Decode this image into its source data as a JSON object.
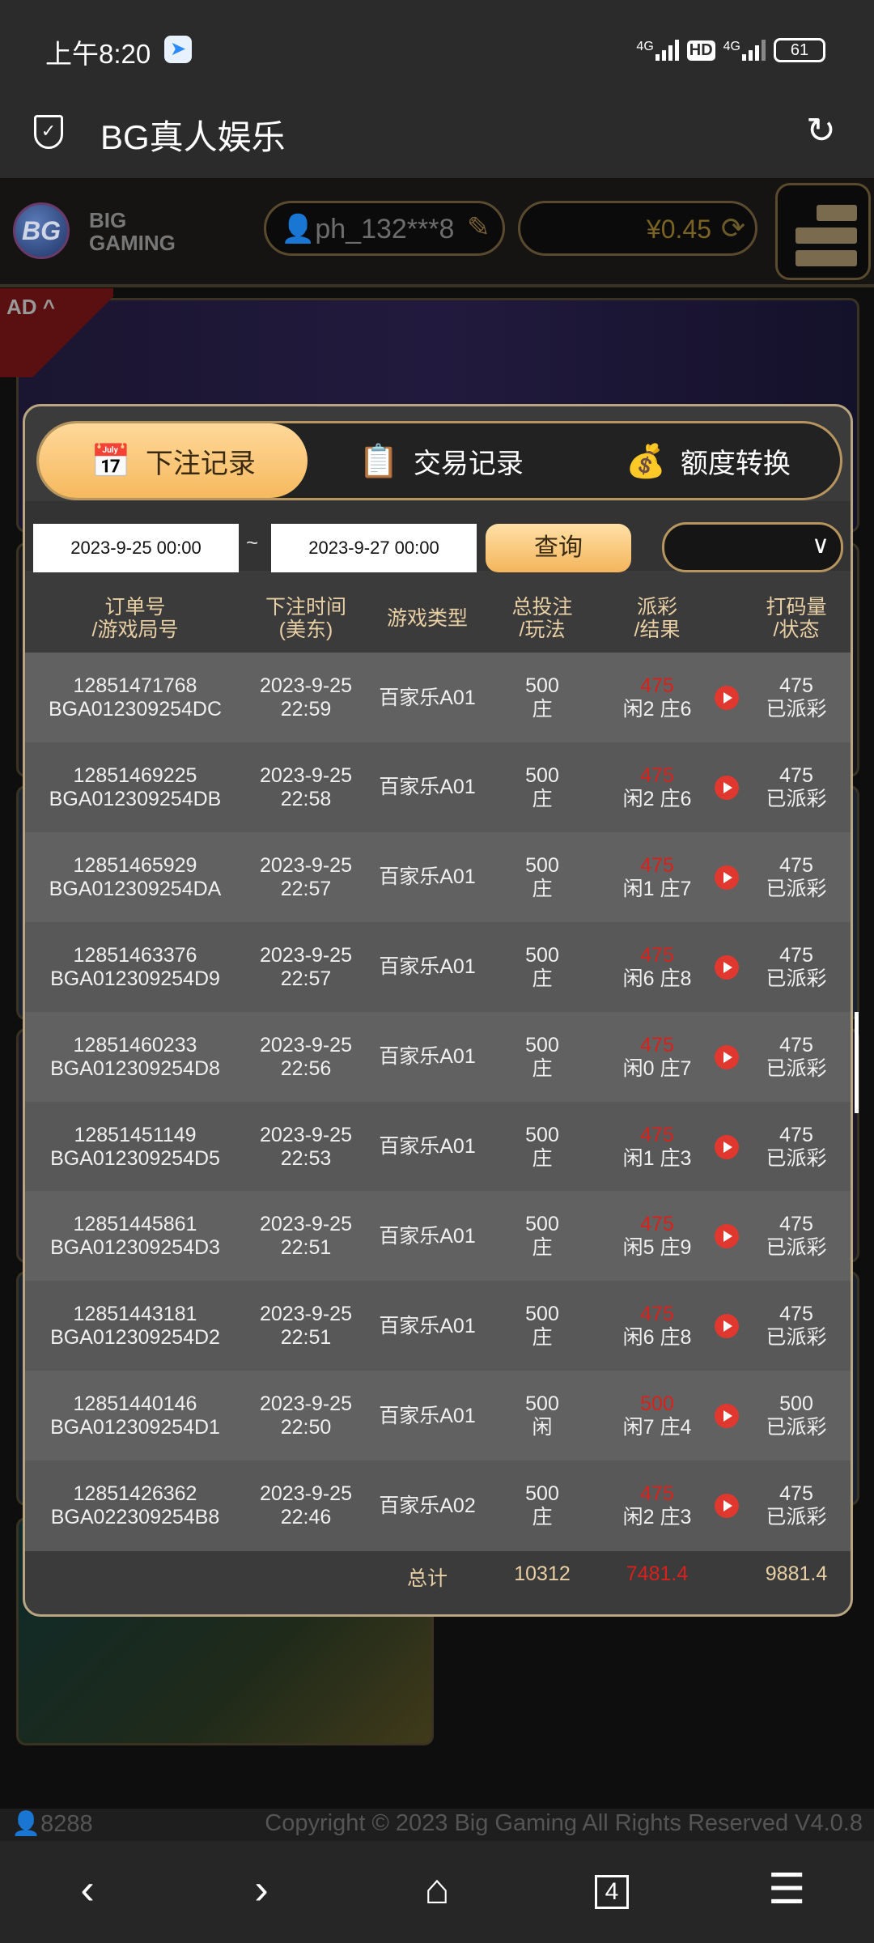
{
  "status_bar": {
    "time": "上午8:20",
    "signal1": "4G",
    "hd": "HD",
    "signal2": "4G",
    "battery": "61"
  },
  "browser": {
    "title": "BG真人娱乐"
  },
  "header": {
    "logo_text": "BG",
    "logo_sub": "BIG GAMING",
    "username": "ph_132***8",
    "balance": "¥0.45"
  },
  "ad": {
    "tag": "AD ^"
  },
  "modal": {
    "tabs": [
      {
        "label": "下注记录",
        "icon": "calendar-icon",
        "active": true
      },
      {
        "label": "交易记录",
        "icon": "clipboard-icon",
        "active": false
      },
      {
        "label": "额度转换",
        "icon": "coins-icon",
        "active": false
      }
    ],
    "filter": {
      "start": "2023-9-25 00:00",
      "sep": "~",
      "end": "2023-9-27 00:00",
      "query": "查询",
      "select": ""
    },
    "columns": [
      "订单号\n/游戏局号",
      "下注时间\n(美东)",
      "游戏类型",
      "总投注\n/玩法",
      "派彩\n/结果",
      "打码量\n/状态"
    ],
    "rows": [
      {
        "order": "12851471768",
        "round": "BGA012309254DC",
        "date": "2023-9-25",
        "time": "22:59",
        "game": "百家乐A01",
        "bet": "500",
        "play": "庄",
        "payout": "475",
        "result": "闲2 庄6",
        "turnover": "475",
        "status": "已派彩"
      },
      {
        "order": "12851469225",
        "round": "BGA012309254DB",
        "date": "2023-9-25",
        "time": "22:58",
        "game": "百家乐A01",
        "bet": "500",
        "play": "庄",
        "payout": "475",
        "result": "闲2 庄6",
        "turnover": "475",
        "status": "已派彩"
      },
      {
        "order": "12851465929",
        "round": "BGA012309254DA",
        "date": "2023-9-25",
        "time": "22:57",
        "game": "百家乐A01",
        "bet": "500",
        "play": "庄",
        "payout": "475",
        "result": "闲1 庄7",
        "turnover": "475",
        "status": "已派彩"
      },
      {
        "order": "12851463376",
        "round": "BGA012309254D9",
        "date": "2023-9-25",
        "time": "22:57",
        "game": "百家乐A01",
        "bet": "500",
        "play": "庄",
        "payout": "475",
        "result": "闲6 庄8",
        "turnover": "475",
        "status": "已派彩"
      },
      {
        "order": "12851460233",
        "round": "BGA012309254D8",
        "date": "2023-9-25",
        "time": "22:56",
        "game": "百家乐A01",
        "bet": "500",
        "play": "庄",
        "payout": "475",
        "result": "闲0 庄7",
        "turnover": "475",
        "status": "已派彩"
      },
      {
        "order": "12851451149",
        "round": "BGA012309254D5",
        "date": "2023-9-25",
        "time": "22:53",
        "game": "百家乐A01",
        "bet": "500",
        "play": "庄",
        "payout": "475",
        "result": "闲1 庄3",
        "turnover": "475",
        "status": "已派彩"
      },
      {
        "order": "12851445861",
        "round": "BGA012309254D3",
        "date": "2023-9-25",
        "time": "22:51",
        "game": "百家乐A01",
        "bet": "500",
        "play": "庄",
        "payout": "475",
        "result": "闲5 庄9",
        "turnover": "475",
        "status": "已派彩"
      },
      {
        "order": "12851443181",
        "round": "BGA012309254D2",
        "date": "2023-9-25",
        "time": "22:51",
        "game": "百家乐A01",
        "bet": "500",
        "play": "庄",
        "payout": "475",
        "result": "闲6 庄8",
        "turnover": "475",
        "status": "已派彩"
      },
      {
        "order": "12851440146",
        "round": "BGA012309254D1",
        "date": "2023-9-25",
        "time": "22:50",
        "game": "百家乐A01",
        "bet": "500",
        "play": "闲",
        "payout": "500",
        "result": "闲7 庄4",
        "turnover": "500",
        "status": "已派彩"
      },
      {
        "order": "12851426362",
        "round": "BGA022309254B8",
        "date": "2023-9-25",
        "time": "22:46",
        "game": "百家乐A02",
        "bet": "500",
        "play": "庄",
        "payout": "475",
        "result": "闲2 庄3",
        "turnover": "475",
        "status": "已派彩"
      }
    ],
    "total": {
      "label": "总计",
      "bet": "10312",
      "payout": "7481.4",
      "turnover": "9881.4"
    }
  },
  "footer": {
    "online": "8288",
    "copyright": "Copyright © 2023 Big Gaming All Rights Reserved  V4.0.8"
  },
  "nav": {
    "tabs_count": "4"
  },
  "colors": {
    "accent": "#f6b95e",
    "payout_red": "#d9211c",
    "gold_border": "#b9a581"
  }
}
